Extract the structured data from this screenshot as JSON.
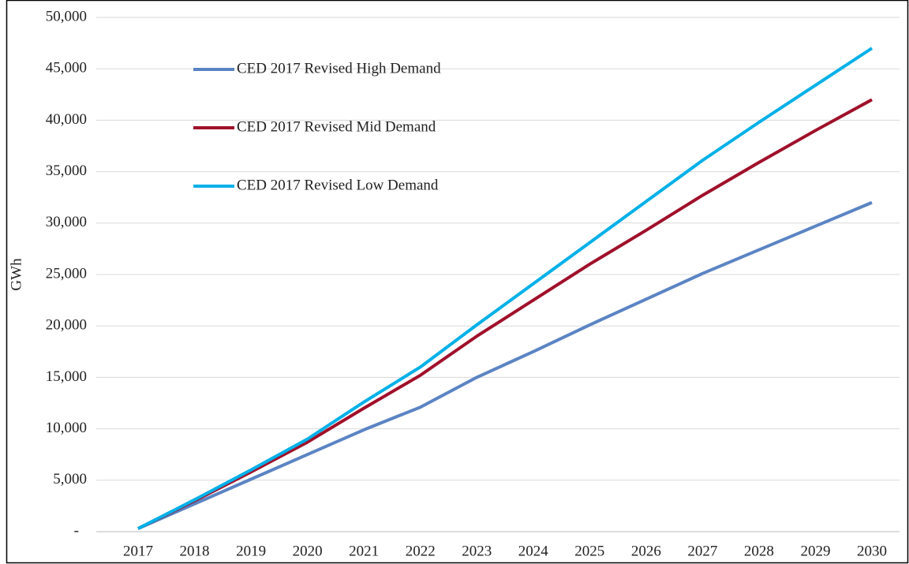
{
  "chart_data": {
    "type": "line",
    "y_label": "GWh",
    "categories": [
      "2017",
      "2018",
      "2019",
      "2020",
      "2021",
      "2022",
      "2023",
      "2024",
      "2025",
      "2026",
      "2027",
      "2028",
      "2029",
      "2030"
    ],
    "series": [
      {
        "name": "CED 2017 Revised High Demand",
        "color": "#5b84c4",
        "values": [
          300,
          2700,
          5100,
          7500,
          9900,
          12100,
          15000,
          17500,
          20100,
          22600,
          25100,
          27400,
          29700,
          32000
        ]
      },
      {
        "name": "CED 2017 Revised Mid Demand",
        "color": "#a0102a",
        "values": [
          300,
          3000,
          5800,
          8700,
          12000,
          15200,
          19000,
          22500,
          26000,
          29300,
          32700,
          35900,
          39000,
          42000
        ]
      },
      {
        "name": "CED 2017 Revised Low Demand",
        "color": "#00b0e8",
        "values": [
          300,
          3100,
          6000,
          9000,
          12600,
          16000,
          20100,
          24100,
          28100,
          32100,
          36100,
          39800,
          43400,
          47000
        ]
      }
    ],
    "ylim": [
      0,
      50000
    ],
    "yticks": [
      {
        "value": 0,
        "label": "-"
      },
      {
        "value": 5000,
        "label": "5,000"
      },
      {
        "value": 10000,
        "label": "10,000"
      },
      {
        "value": 15000,
        "label": "15,000"
      },
      {
        "value": 20000,
        "label": "20,000"
      },
      {
        "value": 25000,
        "label": "25,000"
      },
      {
        "value": 30000,
        "label": "30,000"
      },
      {
        "value": 35000,
        "label": "35,000"
      },
      {
        "value": 40000,
        "label": "40,000"
      },
      {
        "value": 45000,
        "label": "45,000"
      },
      {
        "value": 50000,
        "label": "50,000"
      }
    ],
    "grid": true
  }
}
